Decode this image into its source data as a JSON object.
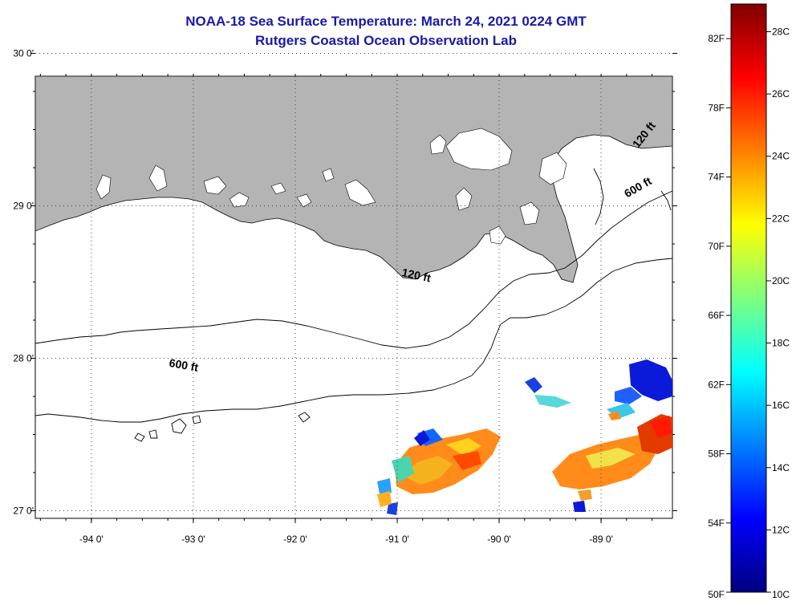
{
  "header": {
    "title": "NOAA-18 Sea Surface Temperature:  March 24, 2021 0224 GMT",
    "subtitle": "Rutgers Coastal Ocean Observation Lab"
  },
  "map": {
    "lon_range": [
      -94.55,
      -88.3
    ],
    "lat_range": [
      26.95,
      29.85
    ],
    "lon_ticks": [
      {
        "value": -94,
        "label": "-94 0'"
      },
      {
        "value": -93,
        "label": "-93 0'"
      },
      {
        "value": -92,
        "label": "-92 0'"
      },
      {
        "value": -91,
        "label": "-91 0'"
      },
      {
        "value": -90,
        "label": "-90 0'"
      },
      {
        "value": -89,
        "label": "-89 0'"
      }
    ],
    "lat_ticks": [
      {
        "value": 30,
        "label": "30 0'"
      },
      {
        "value": 29,
        "label": "29 0'"
      },
      {
        "value": 28,
        "label": "28 0'"
      },
      {
        "value": 27,
        "label": "27 0'"
      }
    ],
    "land_color": "#b4b4b4",
    "grid": true,
    "contour_labels": [
      {
        "text": "120 ft",
        "lon": -90.82,
        "lat": 28.52,
        "angle": 12
      },
      {
        "text": "600 ft",
        "lon": -93.1,
        "lat": 27.93,
        "angle": 10
      },
      {
        "text": "120 ft",
        "lon": -88.55,
        "lat": 29.45,
        "angle": -52
      },
      {
        "text": "600 ft",
        "lon": -88.62,
        "lat": 29.1,
        "angle": -30
      }
    ]
  },
  "colorbar": {
    "fahrenheit": [
      "82F",
      "78F",
      "74F",
      "70F",
      "66F",
      "62F",
      "58F",
      "54F",
      "50F"
    ],
    "celsius": [
      "28C",
      "26C",
      "24C",
      "22C",
      "20C",
      "18C",
      "16C",
      "14C",
      "12C",
      "10C"
    ],
    "colors": [
      "#00007f",
      "#0000ff",
      "#007fff",
      "#00ffff",
      "#7fff7f",
      "#ffff00",
      "#ff7f00",
      "#ff0000",
      "#7f0000"
    ]
  }
}
